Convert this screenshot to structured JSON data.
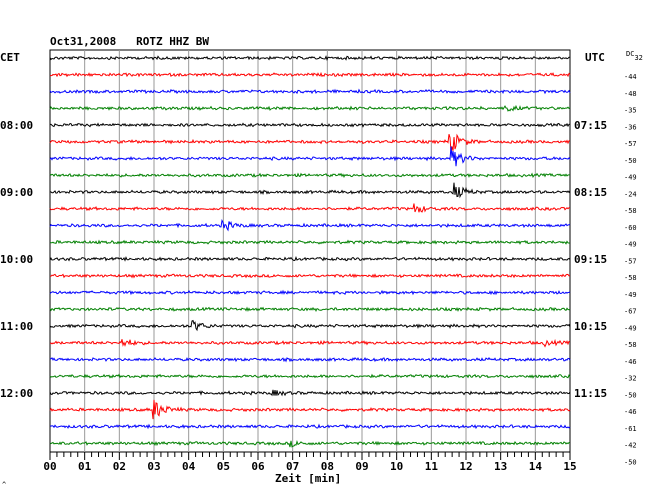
{
  "chart_data": {
    "type": "line",
    "title": "Oct31,2008   ROTZ HHZ BW",
    "left_timezone": "CET",
    "right_timezone": "UTC",
    "dc_label": "DC",
    "dc_top_value": "32",
    "xlabel": "Zeit [min]",
    "x_ticks": [
      "00",
      "01",
      "02",
      "03",
      "04",
      "05",
      "06",
      "07",
      "08",
      "09",
      "10",
      "11",
      "12",
      "13",
      "14",
      "15"
    ],
    "xlim": [
      0,
      15
    ],
    "grid": true,
    "left_hour_labels": [
      {
        "row": 4,
        "text": "08:00"
      },
      {
        "row": 8,
        "text": "09:00"
      },
      {
        "row": 12,
        "text": "10:00"
      },
      {
        "row": 16,
        "text": "11:00"
      },
      {
        "row": 20,
        "text": "12:00"
      }
    ],
    "right_hour_labels": [
      {
        "row": 4,
        "text": "07:15"
      },
      {
        "row": 8,
        "text": "08:15"
      },
      {
        "row": 12,
        "text": "09:15"
      },
      {
        "row": 16,
        "text": "10:15"
      },
      {
        "row": 20,
        "text": "11:15"
      }
    ],
    "dc_values": [
      "-44",
      "-48",
      "-35",
      "-36",
      "-57",
      "-50",
      "-49",
      "-24",
      "-58",
      "-60",
      "-49",
      "-57",
      "-58",
      "-49",
      "-67",
      "-49",
      "-58",
      "-46",
      "-32",
      "-50",
      "-46",
      "-61",
      "-42",
      "-50"
    ],
    "trace_colors": [
      "#000000",
      "#ff0000",
      "#0000ff",
      "#008000"
    ],
    "events": [
      {
        "row": 5,
        "minute": 11.5,
        "amplitude": 14
      },
      {
        "row": 6,
        "minute": 11.55,
        "amplitude": 12
      },
      {
        "row": 8,
        "minute": 11.6,
        "amplitude": 10
      },
      {
        "row": 9,
        "minute": 10.5,
        "amplitude": 5
      },
      {
        "row": 10,
        "minute": 4.95,
        "amplitude": 6
      },
      {
        "row": 16,
        "minute": 4.05,
        "amplitude": 7
      },
      {
        "row": 17,
        "minute": 2.05,
        "amplitude": 5
      },
      {
        "row": 17,
        "minute": 14.2,
        "amplitude": 3
      },
      {
        "row": 21,
        "minute": 2.95,
        "amplitude": 12
      },
      {
        "row": 20,
        "minute": 6.4,
        "amplitude": 3
      },
      {
        "row": 23,
        "minute": 6.9,
        "amplitude": 3
      },
      {
        "row": 3,
        "minute": 13.1,
        "amplitude": 3
      }
    ]
  },
  "footer_mark": "^"
}
